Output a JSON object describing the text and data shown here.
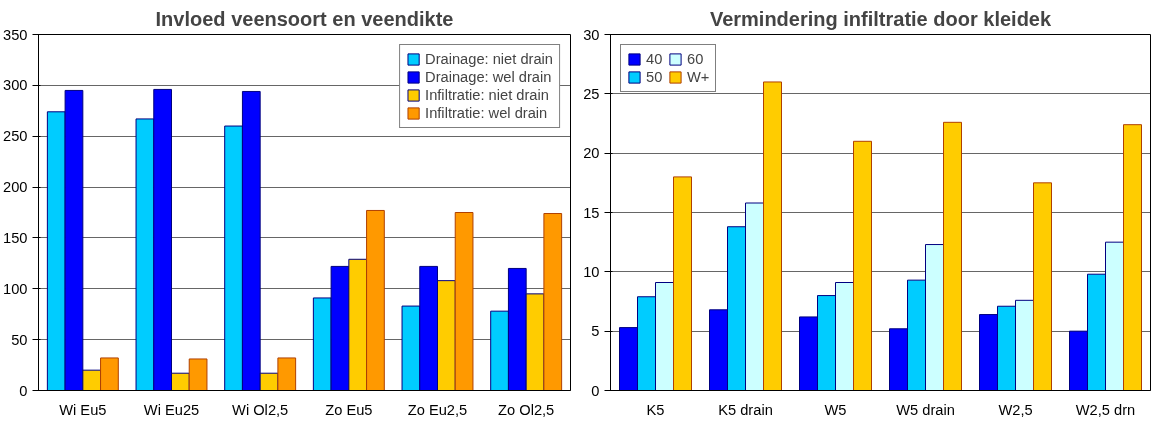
{
  "chart_data": [
    {
      "type": "bar",
      "title": "Invloed veensoort en veendikte",
      "categories": [
        "Wi Eu5",
        "Wi Eu25",
        "Wi Ol2,5",
        "Zo Eu5",
        "Zo Eu2,5",
        "Zo Ol2,5"
      ],
      "series": [
        {
          "name": "Drainage: niet drain",
          "color": "#00ccff",
          "values": [
            274,
            267,
            260,
            91,
            83,
            78
          ]
        },
        {
          "name": "Drainage: wel drain",
          "color": "#0000ff",
          "values": [
            295,
            296,
            294,
            122,
            122,
            120
          ]
        },
        {
          "name": "Infiltratie: niet drain",
          "color": "#ffcc00",
          "values": [
            20,
            17,
            17,
            129,
            108,
            95
          ]
        },
        {
          "name": "Infiltratie: wel drain",
          "color": "#ff9900",
          "values": [
            32,
            31,
            32,
            177,
            175,
            174
          ]
        }
      ],
      "ylim": [
        0,
        350
      ],
      "yticks": [
        0,
        50,
        100,
        150,
        200,
        250,
        300,
        350
      ],
      "grid": "y",
      "legend": "top right"
    },
    {
      "type": "bar",
      "title": "Vermindering infiltratie door kleidek",
      "categories": [
        "K5",
        "K5 drain",
        "W5",
        "W5 drain",
        "W2,5",
        "W2,5 drn"
      ],
      "series": [
        {
          "name": "40",
          "color": "#0000ff",
          "values": [
            5.3,
            6.8,
            6.2,
            5.2,
            6.4,
            5.0
          ]
        },
        {
          "name": "50",
          "color": "#00ccff",
          "values": [
            7.9,
            13.8,
            8.0,
            9.3,
            7.1,
            9.8
          ]
        },
        {
          "name": "60",
          "color": "#ccffff",
          "values": [
            9.1,
            15.8,
            9.1,
            12.3,
            7.6,
            12.5
          ]
        },
        {
          "name": "W+",
          "color": "#ffcc00",
          "values": [
            18,
            26,
            21,
            22.6,
            17.5,
            22.4
          ]
        }
      ],
      "ylim": [
        0,
        30
      ],
      "yticks": [
        0,
        5,
        10,
        15,
        20,
        25,
        30
      ],
      "grid": "y",
      "legend": "top left"
    }
  ]
}
